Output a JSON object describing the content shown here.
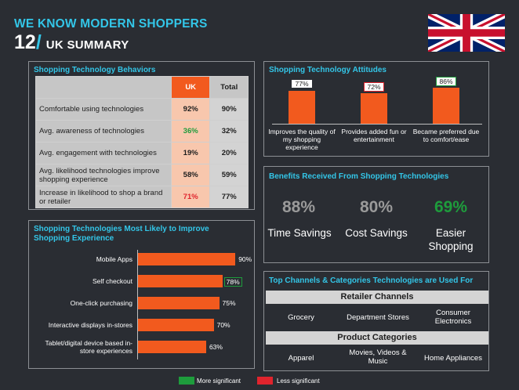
{
  "header": {
    "title": "WE KNOW MODERN SHOPPERS",
    "number": "12",
    "slash": "/",
    "subtitle": "UK SUMMARY"
  },
  "behaviors": {
    "title": "Shopping Technology Behaviors",
    "columns": [
      "UK",
      "Total"
    ],
    "rows": [
      {
        "label": "Comfortable using technologies",
        "uk": "92%",
        "total": "90%",
        "flag": ""
      },
      {
        "label": "Avg. awareness of technologies",
        "uk": "36%",
        "total": "32%",
        "flag": "more"
      },
      {
        "label": "Avg. engagement with technologies",
        "uk": "19%",
        "total": "20%",
        "flag": ""
      },
      {
        "label": "Avg. likelihood technologies improve shopping experience",
        "uk": "58%",
        "total": "59%",
        "flag": ""
      },
      {
        "label": "Increase in likelihood to shop a brand or retailer",
        "uk": "71%",
        "total": "77%",
        "flag": "less"
      }
    ]
  },
  "attitudes": {
    "title": "Shopping Technology Attitudes",
    "chart_data": {
      "type": "bar",
      "categories": [
        "Improves the quality of my shopping experience",
        "Provides added fun or entertainment",
        "Became preferred due to comfort/ease"
      ],
      "values": [
        77,
        72,
        86
      ],
      "labels": [
        "77%",
        "72%",
        "86%"
      ],
      "flags": [
        "",
        "less",
        "more"
      ]
    }
  },
  "benefits": {
    "title": "Benefits Received From Shopping Technologies",
    "items": [
      {
        "pct": "88%",
        "label": "Time Savings",
        "color": "#9a9a9a"
      },
      {
        "pct": "80%",
        "label": "Cost Savings",
        "color": "#9a9a9a"
      },
      {
        "pct": "69%",
        "label": "Easier Shopping",
        "color": "#1e9c3c"
      }
    ]
  },
  "improve": {
    "title": "Shopping Technologies Most Likely to Improve Shopping Experience",
    "chart_data": {
      "type": "bar",
      "orientation": "horizontal",
      "categories": [
        "Mobile Apps",
        "Self checkout",
        "One-click purchasing",
        "Interactive displays in-stores",
        "Tablet/digital device based in-store experiences"
      ],
      "values": [
        90,
        78,
        75,
        70,
        63
      ],
      "labels": [
        "90%",
        "78%",
        "75%",
        "70%",
        "63%"
      ],
      "flags": [
        "",
        "more",
        "",
        "",
        ""
      ]
    }
  },
  "channels": {
    "title": "Top Channels & Categories Technologies are Used For",
    "retailer_label": "Retailer Channels",
    "retailer": [
      "Grocery",
      "Department Stores",
      "Consumer Electronics"
    ],
    "product_label": "Product Categories",
    "product": [
      "Apparel",
      "Movies, Videos & Music",
      "Home Appliances"
    ]
  },
  "legend": {
    "more": "More significant",
    "less": "Less significant",
    "more_color": "#1e9c3c",
    "less_color": "#e0242d"
  }
}
